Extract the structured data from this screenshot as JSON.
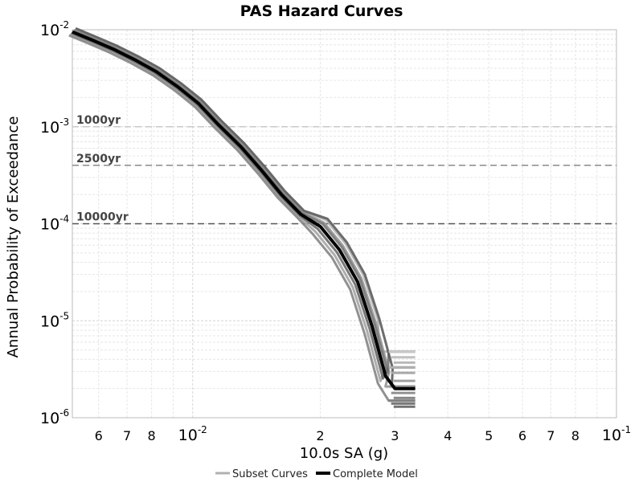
{
  "chart_data": {
    "type": "line",
    "title": "PAS Hazard Curves",
    "xlabel": "10.0s SA (g)",
    "ylabel": "Annual Probability of Exceedance",
    "xscale": "log",
    "yscale": "log",
    "xlim": [
      0.0052,
      0.1
    ],
    "ylim": [
      1e-06,
      0.01
    ],
    "grid": true,
    "legend_position": "bottom-center",
    "x_ticks": [
      {
        "value": 0.006,
        "label": "6"
      },
      {
        "value": 0.007,
        "label": "7"
      },
      {
        "value": 0.008,
        "label": "8"
      },
      {
        "value": 0.01,
        "base": "10",
        "exp": "-2"
      },
      {
        "value": 0.02,
        "label": "2"
      },
      {
        "value": 0.03,
        "label": "3"
      },
      {
        "value": 0.04,
        "label": "4"
      },
      {
        "value": 0.05,
        "label": "5"
      },
      {
        "value": 0.06,
        "label": "6"
      },
      {
        "value": 0.07,
        "label": "7"
      },
      {
        "value": 0.08,
        "label": "8"
      },
      {
        "value": 0.1,
        "base": "10",
        "exp": "-1"
      }
    ],
    "y_ticks": [
      {
        "value": 0.01,
        "base": "10",
        "exp": "-2"
      },
      {
        "value": 0.001,
        "base": "10",
        "exp": "-3"
      },
      {
        "value": 0.0001,
        "base": "10",
        "exp": "-4"
      },
      {
        "value": 1e-05,
        "base": "10",
        "exp": "-5"
      },
      {
        "value": 1e-06,
        "base": "10",
        "exp": "-6"
      }
    ],
    "reference_lines": [
      {
        "label": "1000yr",
        "y": 0.001,
        "color": "#c8c8c8"
      },
      {
        "label": "2500yr",
        "y": 0.0004,
        "color": "#8a8a8a"
      },
      {
        "label": "10000yr",
        "y": 0.0001,
        "color": "#555555"
      }
    ],
    "complete_model": {
      "name": "Complete Model",
      "color": "#000000",
      "x": [
        0.0052,
        0.0058,
        0.0065,
        0.0073,
        0.0082,
        0.0092,
        0.0103,
        0.0115,
        0.013,
        0.0145,
        0.0162,
        0.018,
        0.02,
        0.0222,
        0.0245,
        0.0265,
        0.0285,
        0.03,
        0.0335
      ],
      "y": [
        0.0095,
        0.0078,
        0.0063,
        0.0049,
        0.0037,
        0.0026,
        0.00175,
        0.00105,
        0.00062,
        0.00036,
        0.0002,
        0.000125,
        9.38e-05,
        5.38e-05,
        2.52e-05,
        8.8e-06,
        2.7e-06,
        2e-06,
        2e-06
      ]
    },
    "subset_curves": {
      "name": "Subset Curves",
      "colors": [
        "#b4b4b4",
        "#a5a5a5",
        "#959595",
        "#858585",
        "#777777",
        "#696969",
        "#5c5c5c"
      ],
      "tail_x_start": [
        0.0275,
        0.0285,
        0.0285,
        0.029,
        0.029,
        0.029,
        0.0295
      ],
      "tail_end_x": 0.0335,
      "tail_levels": [
        4.8e-06,
        4.2e-06,
        3.7e-06,
        3.3e-06,
        2.9e-06,
        2.4e-06,
        2.1e-06,
        1.8e-06,
        1.6e-06,
        1.5e-06,
        1.4e-06,
        1.3e-06
      ]
    }
  },
  "legend": {
    "subset_label": "Subset Curves",
    "complete_label": "Complete Model"
  }
}
